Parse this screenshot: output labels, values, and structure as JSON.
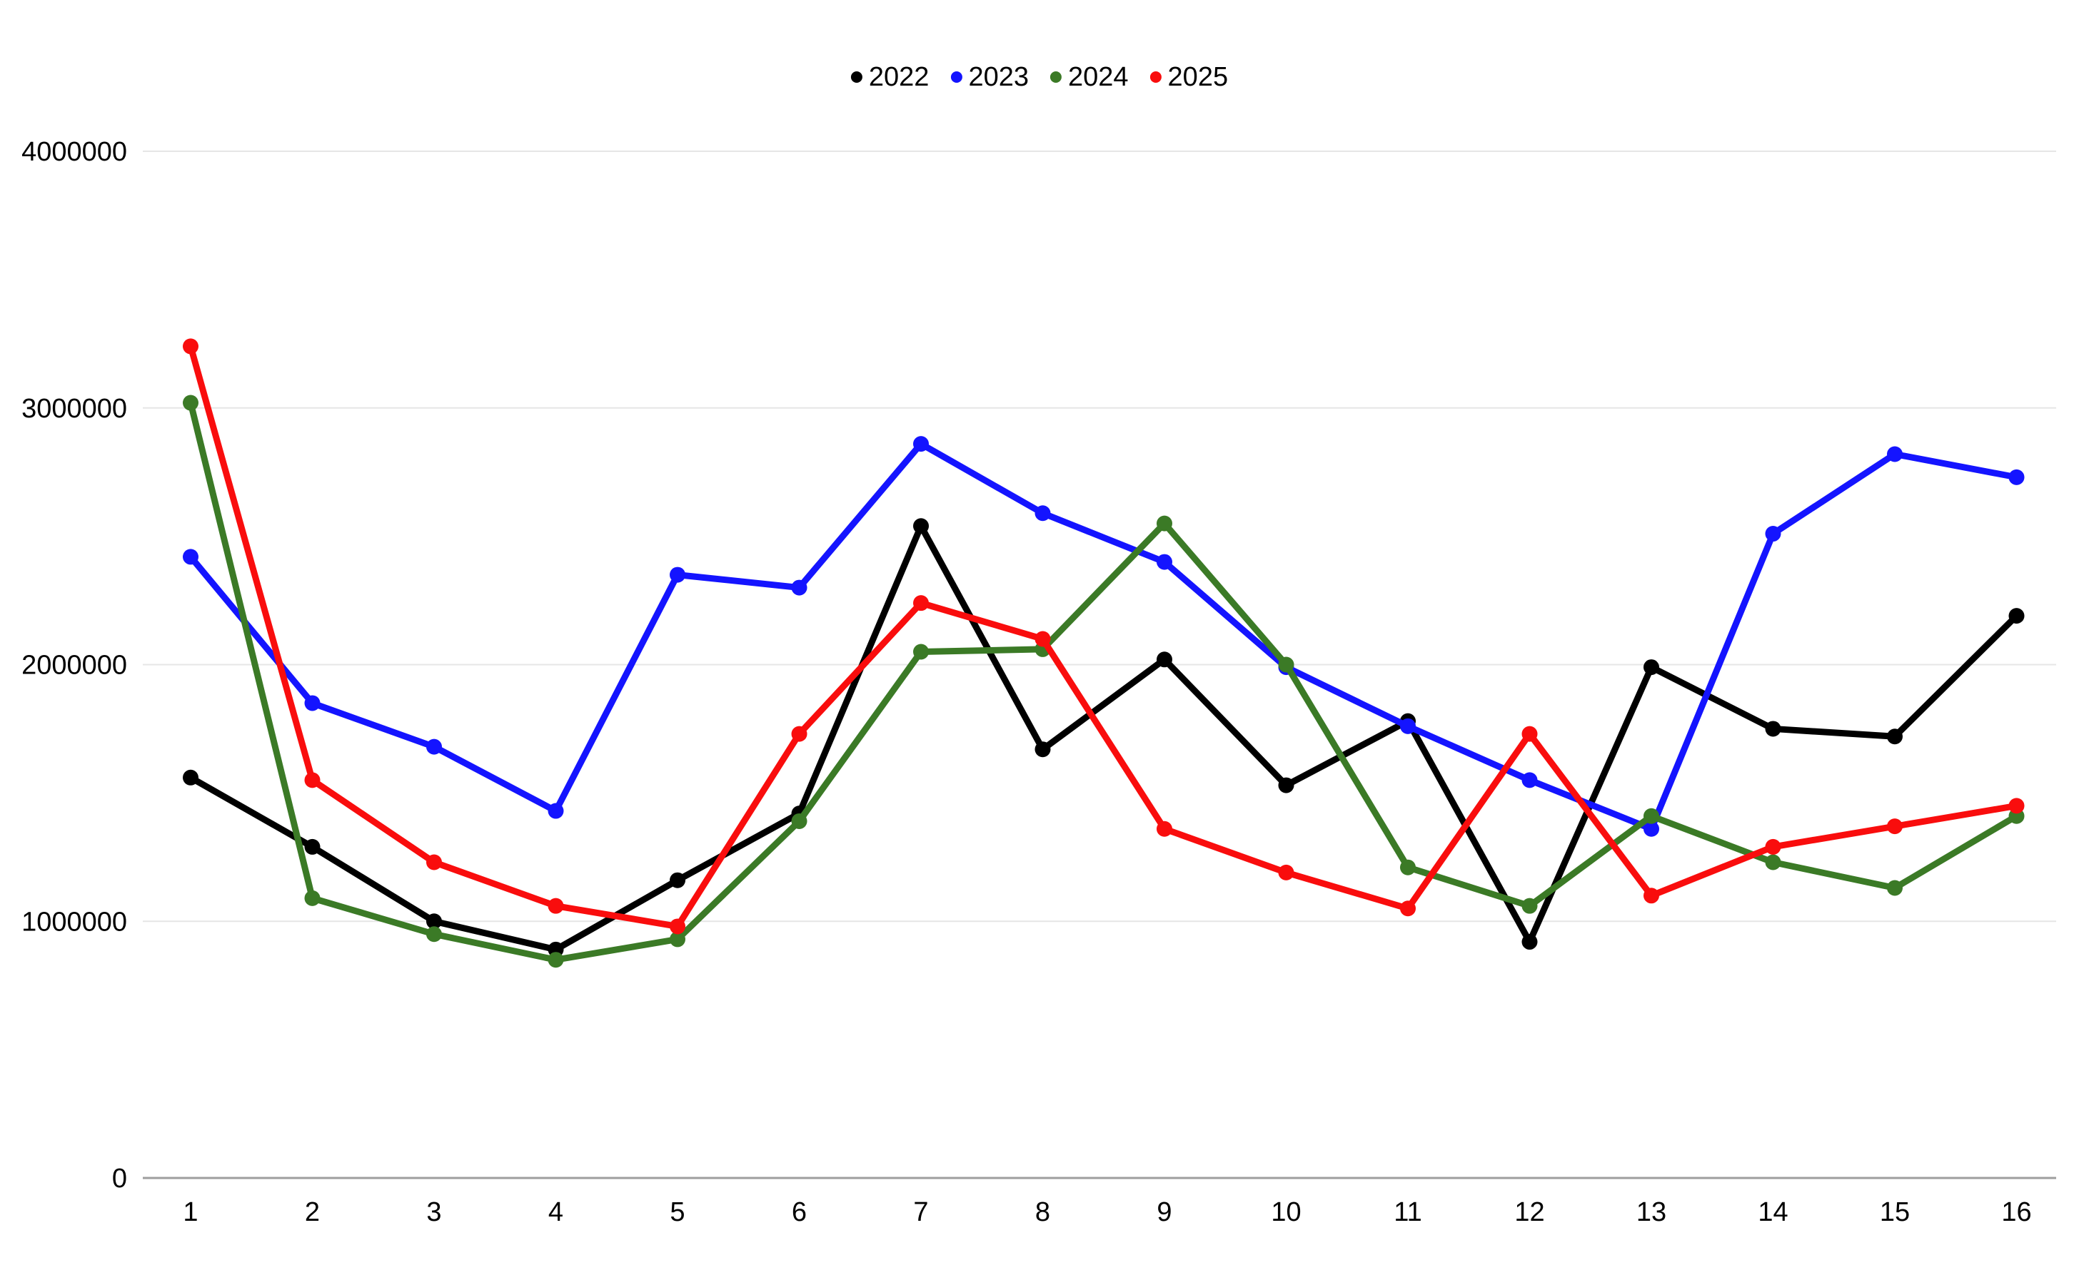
{
  "chart_data": {
    "type": "line",
    "title": "",
    "xlabel": "",
    "ylabel": "",
    "x": [
      1,
      2,
      3,
      4,
      5,
      6,
      7,
      8,
      9,
      10,
      11,
      12,
      13,
      14,
      15,
      16
    ],
    "series": [
      {
        "name": "2022",
        "color": "#000000",
        "values": [
          1560000,
          1290000,
          1000000,
          890000,
          1160000,
          1420000,
          2540000,
          1670000,
          2020000,
          1530000,
          1780000,
          920000,
          1990000,
          1750000,
          1720000,
          2190000
        ]
      },
      {
        "name": "2023",
        "color": "#1414ff",
        "values": [
          2420000,
          1850000,
          1680000,
          1430000,
          2350000,
          2300000,
          2860000,
          2590000,
          2400000,
          1990000,
          1760000,
          1550000,
          1360000,
          2510000,
          2820000,
          2730000
        ]
      },
      {
        "name": "2024",
        "color": "#3b7a26",
        "values": [
          3020000,
          1090000,
          950000,
          850000,
          930000,
          1390000,
          2050000,
          2060000,
          2550000,
          2000000,
          1210000,
          1060000,
          1410000,
          1230000,
          1130000,
          1410000
        ]
      },
      {
        "name": "2025",
        "color": "#f90d0d",
        "values": [
          3240000,
          1550000,
          1230000,
          1060000,
          980000,
          1730000,
          2240000,
          2100000,
          1360000,
          1190000,
          1050000,
          1730000,
          1100000,
          1290000,
          1370000,
          1450000
        ]
      }
    ],
    "ylim": [
      0,
      4000000
    ],
    "yticks": [
      0,
      1000000,
      2000000,
      3000000,
      4000000
    ],
    "grid": true,
    "legend_position": "top-center",
    "marker": "circle",
    "background_color": "#ffffff",
    "gridline_color": "#e6e6e6",
    "axis_line_color": "#9e9e9e",
    "tick_label_color": "#000000"
  }
}
